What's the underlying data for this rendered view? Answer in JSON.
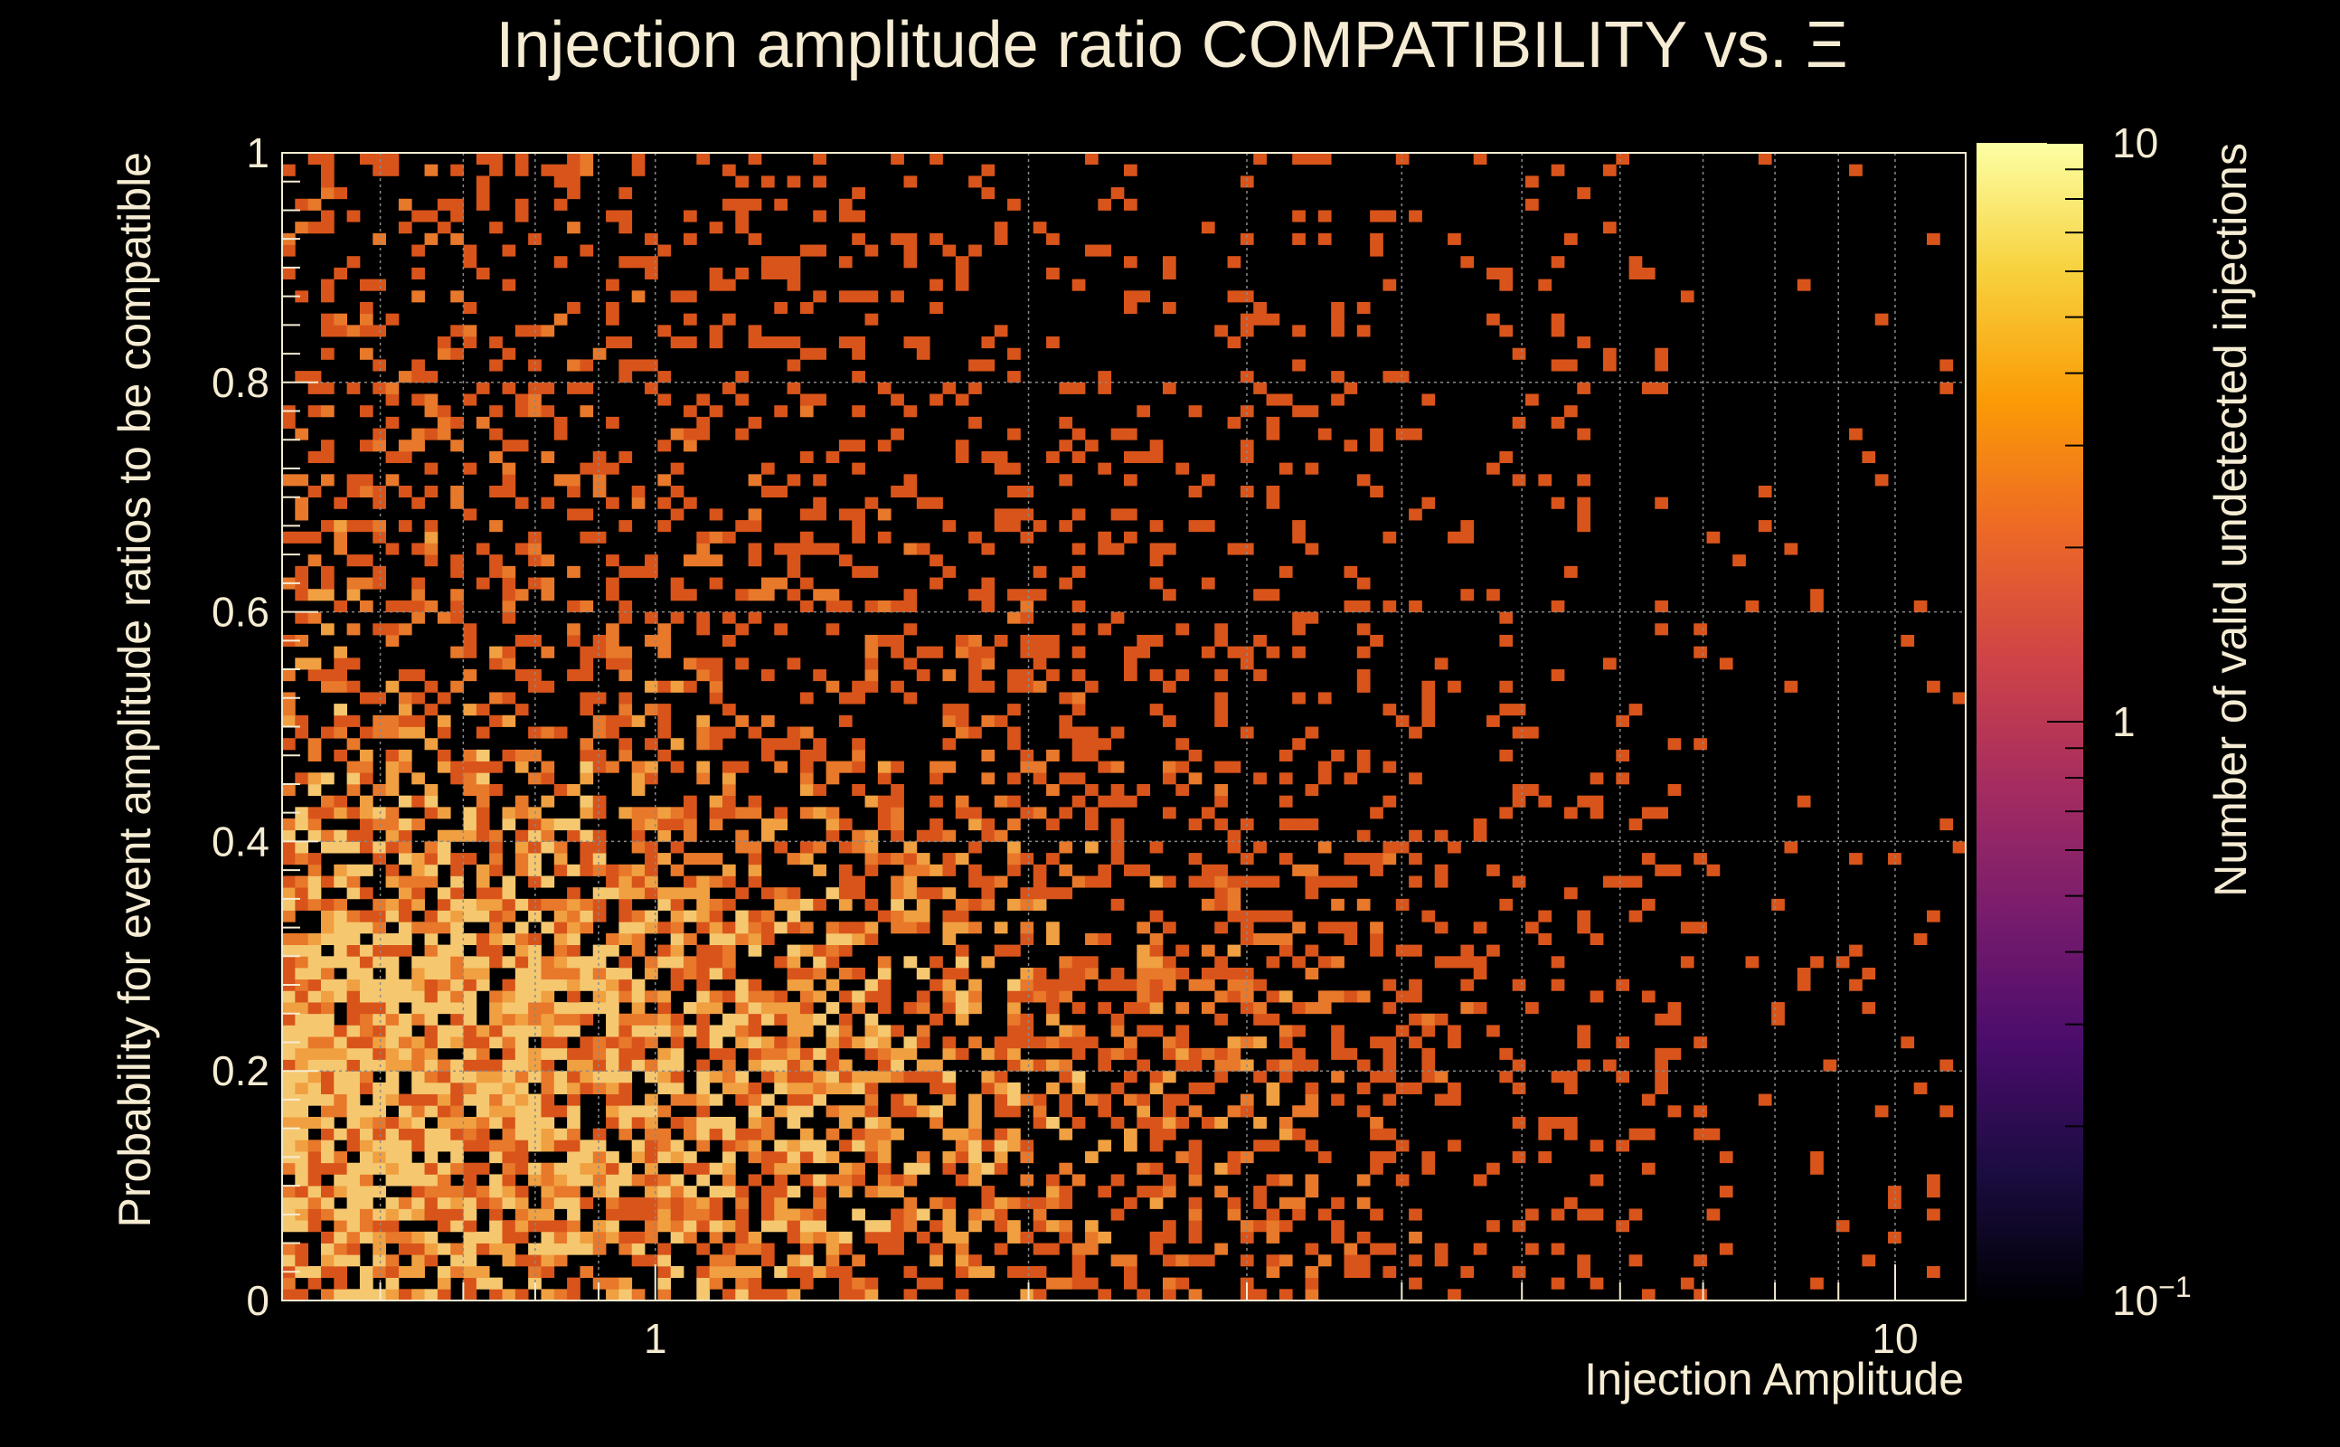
{
  "chart_data": {
    "type": "heatmap",
    "title": "Injection amplitude ratio COMPATIBILITY vs.  Ξ",
    "xlabel": "Injection Amplitude",
    "ylabel": "Probability for event amplitude ratios to be compatible",
    "colorbar_label": "Number of valid undetected injections",
    "x_scale": "log",
    "xlim": [
      0.5,
      11.4
    ],
    "ylim": [
      0,
      1
    ],
    "x_ticks": [
      {
        "value": 1,
        "label": "1"
      },
      {
        "value": 10,
        "label": "10"
      }
    ],
    "y_ticks": [
      {
        "value": 0,
        "label": "0"
      },
      {
        "value": 0.2,
        "label": "0.2"
      },
      {
        "value": 0.4,
        "label": "0.4"
      },
      {
        "value": 0.6,
        "label": "0.6"
      },
      {
        "value": 0.8,
        "label": "0.8"
      },
      {
        "value": 1,
        "label": "1"
      }
    ],
    "colorbar": {
      "scale": "log",
      "range": [
        0.1,
        10
      ],
      "ticks": [
        {
          "value": 0.1,
          "base": "10",
          "exponent": "−1"
        },
        {
          "value": 1,
          "base": "1",
          "exponent": ""
        },
        {
          "value": 10,
          "base": "10",
          "exponent": ""
        }
      ],
      "palette": [
        "#000004",
        "#1b0c41",
        "#4a0c6b",
        "#781c6d",
        "#a52c60",
        "#cf4446",
        "#ed6925",
        "#fb9b06",
        "#f7d13d",
        "#fcffa4"
      ],
      "colors_in_image": [
        "#000000",
        "#3a0e5a",
        "#8a2257",
        "#c8403a",
        "#d85a1a",
        "#e2a03a",
        "#f3e7c3",
        "#fbf9f2"
      ]
    },
    "grid": true,
    "bins": {
      "x_count": 130,
      "y_count": 100
    },
    "density_description": "counts mostly 1 (orange), up to ~4 (light yellow); densest at low amplitude and low probability (0.1-0.4), sparse beyond amplitude ~4",
    "colors": {
      "background": "#000000",
      "text": "#f5ecd3",
      "grid": "#8a8a8a",
      "frame": "#f5ecd3"
    }
  }
}
